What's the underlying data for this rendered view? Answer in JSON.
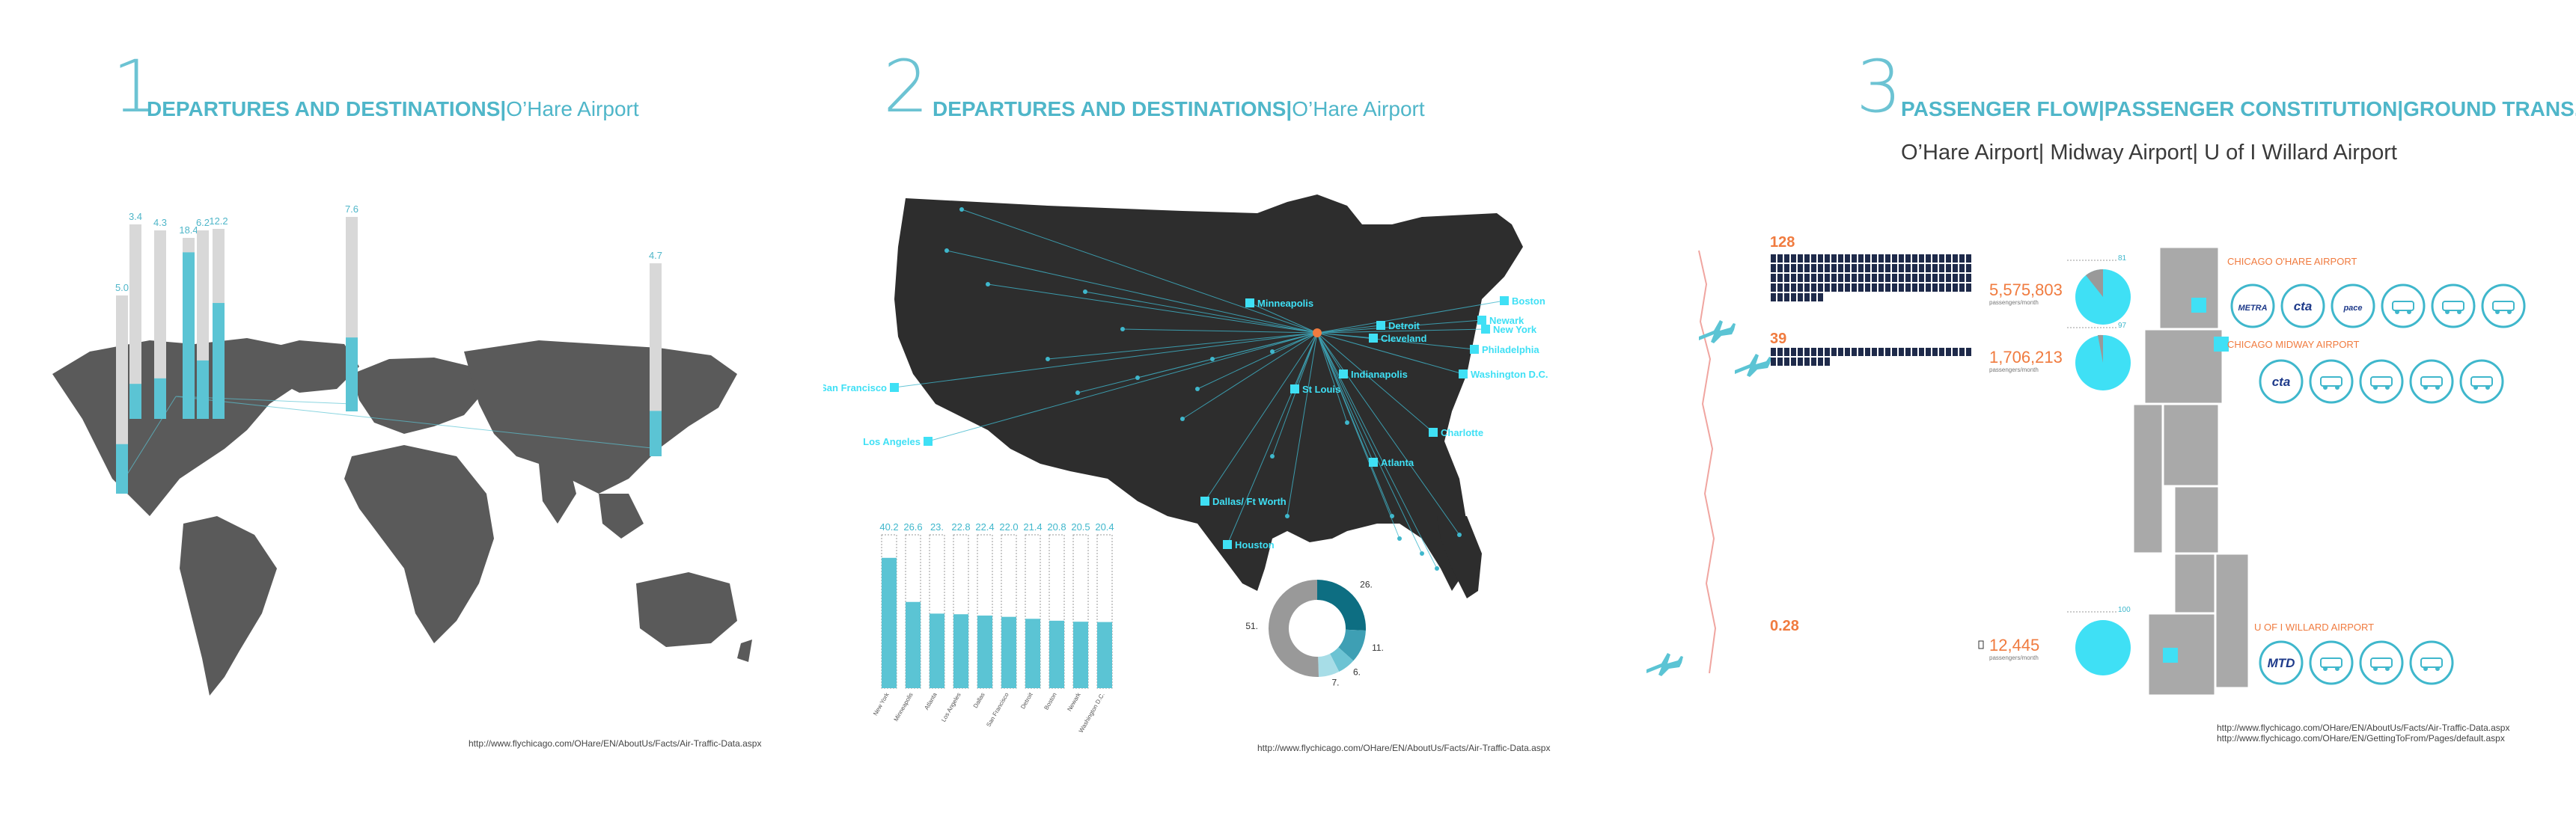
{
  "panel1": {
    "number": "1",
    "title_bold": "DEPARTURES AND DESTINATIONS",
    "sep": "|",
    "title_light": "O’Hare Airport",
    "source": "http://www.flychicago.com/OHare/EN/AboutUs/Facts/Air-Traffic-Data.aspx"
  },
  "panel2": {
    "number": "2",
    "title_bold": "DEPARTURES AND DESTINATIONS",
    "sep": "|",
    "title_light": "O’Hare Airport",
    "source": "http://www.flychicago.com/OHare/EN/AboutUs/Facts/Air-Traffic-Data.aspx",
    "cities": [
      "Minneapolis",
      "Boston",
      "New York",
      "Newark",
      "Philadelphia",
      "Washington D.C.",
      "Cleveland",
      "Indianapolis",
      "St Louis",
      "Charlotte",
      "Atlanta",
      "Dallas/ Ft Worth",
      "Houston",
      "San Francisco",
      "Los Angeles",
      "Detroit"
    ]
  },
  "panel3": {
    "number": "3",
    "title_a": "PASSENGER FLOW",
    "title_b": "PASSENGER CONSTITUTION",
    "title_c": "GROUND TRANS.",
    "sep": "|",
    "subtitle": "O’Hare Airport| Midway Airport| U of I Willard Airport",
    "ohare_count": "128",
    "midway_count": "39",
    "willard_count": "0.28",
    "ohare_passengers": "5,575,803",
    "midway_passengers": "1,706,213",
    "willard_passengers": "12,445",
    "passengers_unit": "passengers/month",
    "ohare_label": "CHICAGO O'HARE AIRPORT",
    "midway_label": "CHICAGO MIDWAY AIRPORT",
    "willard_label": "U OF I WILLARD AIRPORT",
    "pie_pct_1": "81",
    "pie_pct_2": "97",
    "pie_pct_3": "100",
    "ohare_icons": [
      "metra-icon",
      "cta-icon",
      "pace-icon",
      "taxi-icon",
      "car-icon",
      "shuttle-icon"
    ],
    "ohare_icon_text": [
      "METRA",
      "cta",
      "pace",
      "",
      "",
      ""
    ],
    "midway_icons": [
      "cta-icon",
      "bus-icon",
      "taxi-icon",
      "car-icon",
      "shuttle-icon"
    ],
    "midway_icon_text": [
      "cta",
      "",
      "",
      "",
      ""
    ],
    "willard_icons": [
      "mtd-icon",
      "taxi-icon",
      "car-icon",
      "shuttle-icon"
    ],
    "willard_icon_text": [
      "MTD",
      "",
      "",
      ""
    ],
    "source_1": "http://www.flychicago.com/OHare/EN/AboutUs/Facts/Air-Traffic-Data.aspx",
    "source_2": "http://www.flychicago.com/OHare/EN/GettingToFrom/Pages/default.aspx"
  },
  "colors": {
    "accent": "#4fb6c9",
    "bar": "#5bc4d4",
    "gray_bar": "#d8d8d8",
    "map": "#5a5a5a",
    "usmap": "#2d2d2d",
    "orange": "#f07b3f",
    "navy": "#1e2a4a",
    "cyan": "#3fe0f5"
  },
  "chart_data": [
    {
      "type": "bar",
      "title": "DEPARTURES AND DESTINATIONS|O’Hare Airport",
      "subtitle": "world map overlay",
      "series": [
        {
          "values": [
            5.0,
            3.4,
            4.3,
            18.4,
            6.2,
            12.2,
            7.6,
            4.7
          ]
        }
      ],
      "ylim": [
        0,
        20
      ]
    },
    {
      "type": "bar",
      "title": "DEPARTURES AND DESTINATIONS|O’Hare Airport",
      "categories": [
        "New York",
        "Minneapolis",
        "Atlanta",
        "Los Angeles",
        "Dallas",
        "San Francisco",
        "Detroit",
        "Boston",
        "Newark",
        "Washington D.C."
      ],
      "values": [
        40.2,
        26.6,
        23.0,
        22.8,
        22.4,
        22.0,
        21.4,
        20.8,
        20.5,
        20.4
      ],
      "value_labels": [
        "40.2",
        "26.6",
        "23.",
        "22.8",
        "22.4",
        "22.0",
        "21.4",
        "20.8",
        "20.5",
        "20.4"
      ],
      "ylim": [
        0,
        45
      ]
    },
    {
      "type": "pie",
      "subtitle": "donut",
      "values": [
        26,
        11,
        6,
        7,
        51
      ],
      "labels": [
        "26.",
        "11.",
        "6.",
        "7.",
        "51."
      ]
    }
  ]
}
